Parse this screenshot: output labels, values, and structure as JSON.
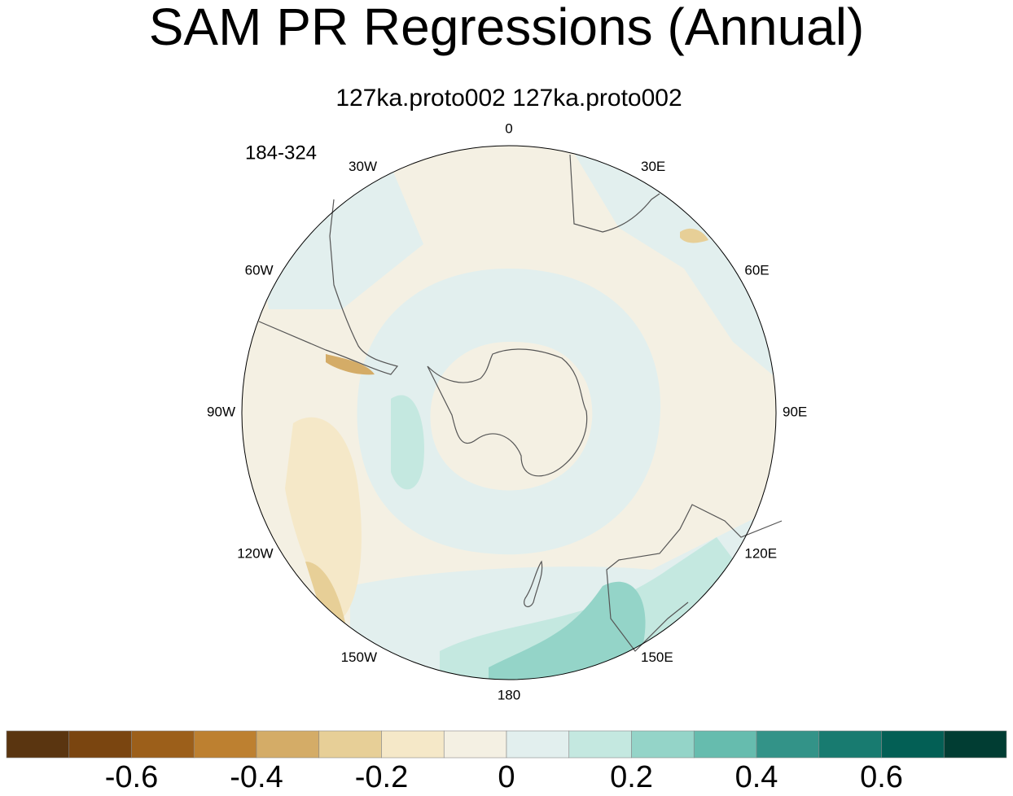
{
  "title": "SAM PR Regressions (Annual)",
  "subtitle": "127ka.proto002  127ka.proto002",
  "period": "184-324",
  "longitude_labels": [
    "0",
    "30E",
    "60E",
    "90E",
    "120E",
    "150E",
    "180",
    "150W",
    "120W",
    "90W",
    "60W",
    "30W"
  ],
  "colorbar": {
    "colors": [
      "#5a3510",
      "#7a4510",
      "#9c5f1a",
      "#bd8030",
      "#d4ac67",
      "#e7cf97",
      "#f5e8c8",
      "#f4f0e3",
      "#e2efee",
      "#c4e8e0",
      "#94d4c8",
      "#66bcae",
      "#339388",
      "#187b70",
      "#035f55",
      "#013d33"
    ],
    "levels": [
      -0.7,
      -0.6,
      -0.5,
      -0.4,
      -0.3,
      -0.2,
      -0.1,
      0,
      0.1,
      0.2,
      0.3,
      0.4,
      0.5,
      0.6,
      0.7
    ],
    "ticks": [
      -0.6,
      -0.4,
      -0.2,
      0,
      0.2,
      0.4,
      0.6
    ]
  }
}
